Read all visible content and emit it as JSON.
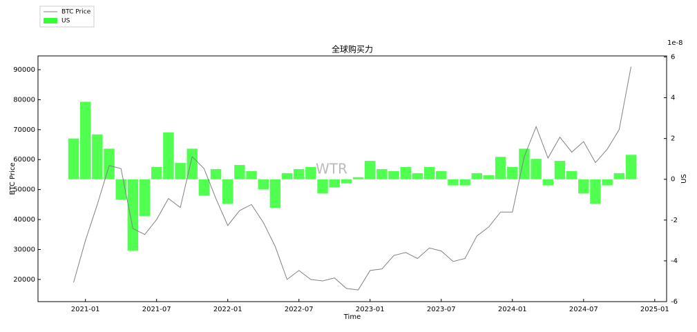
{
  "chart_data": {
    "type": "line",
    "title": "全球购买力",
    "xlabel": "Time",
    "ylabel": "BTC Price",
    "y2label": "US",
    "y2_offset_label": "1e-8",
    "watermark": "WTR",
    "x": [
      "2020-12",
      "2021-01",
      "2021-02",
      "2021-03",
      "2021-04",
      "2021-05",
      "2021-06",
      "2021-07",
      "2021-08",
      "2021-09",
      "2021-10",
      "2021-11",
      "2021-12",
      "2022-01",
      "2022-02",
      "2022-03",
      "2022-04",
      "2022-05",
      "2022-06",
      "2022-07",
      "2022-08",
      "2022-09",
      "2022-10",
      "2022-11",
      "2022-12",
      "2023-01",
      "2023-02",
      "2023-03",
      "2023-04",
      "2023-05",
      "2023-06",
      "2023-07",
      "2023-08",
      "2023-09",
      "2023-10",
      "2023-11",
      "2023-12",
      "2024-01",
      "2024-02",
      "2024-03",
      "2024-04",
      "2024-05",
      "2024-06",
      "2024-07",
      "2024-08",
      "2024-09",
      "2024-10",
      "2024-11"
    ],
    "series": [
      {
        "name": "BTC Price",
        "color": "#808080",
        "values": [
          19000,
          33000,
          45000,
          58000,
          57000,
          37000,
          35000,
          40000,
          47000,
          44000,
          61000,
          57000,
          47000,
          38000,
          43000,
          45000,
          39000,
          31000,
          20000,
          23000,
          20000,
          19500,
          20500,
          17000,
          16500,
          23000,
          23500,
          28000,
          29000,
          27000,
          30500,
          29500,
          26000,
          27000,
          34500,
          37500,
          42500,
          42500,
          61000,
          71000,
          60500,
          67500,
          62500,
          66000,
          59000,
          63500,
          70000,
          91000
        ]
      },
      {
        "name": "US",
        "type": "bar",
        "axis": "y2",
        "color": "#33ff33",
        "values": [
          2.0,
          3.8,
          2.2,
          1.5,
          -1.0,
          -3.5,
          -1.8,
          0.6,
          2.3,
          0.8,
          1.5,
          -0.8,
          0.5,
          -1.2,
          0.7,
          0.4,
          -0.5,
          -1.4,
          0.3,
          0.5,
          0.6,
          -0.7,
          -0.4,
          -0.2,
          0.1,
          0.9,
          0.5,
          0.4,
          0.6,
          0.3,
          0.6,
          0.4,
          -0.3,
          -0.3,
          0.3,
          0.2,
          1.1,
          0.6,
          1.5,
          1.0,
          -0.3,
          0.9,
          0.4,
          -0.7,
          -1.2,
          -0.3,
          0.3,
          1.2
        ]
      }
    ],
    "xlim": [
      "2020-09",
      "2025-02"
    ],
    "xticks": [
      "2021-01",
      "2021-07",
      "2022-01",
      "2022-07",
      "2023-01",
      "2023-07",
      "2024-01",
      "2024-07",
      "2025-01"
    ],
    "ylim": [
      12600,
      94600
    ],
    "yticks": [
      20000,
      30000,
      40000,
      50000,
      60000,
      70000,
      80000,
      90000
    ],
    "y2lim": [
      -6,
      6.05
    ],
    "y2ticks": [
      -6,
      -4,
      -2,
      0,
      2,
      4,
      6
    ],
    "legend": "upper left outside"
  }
}
